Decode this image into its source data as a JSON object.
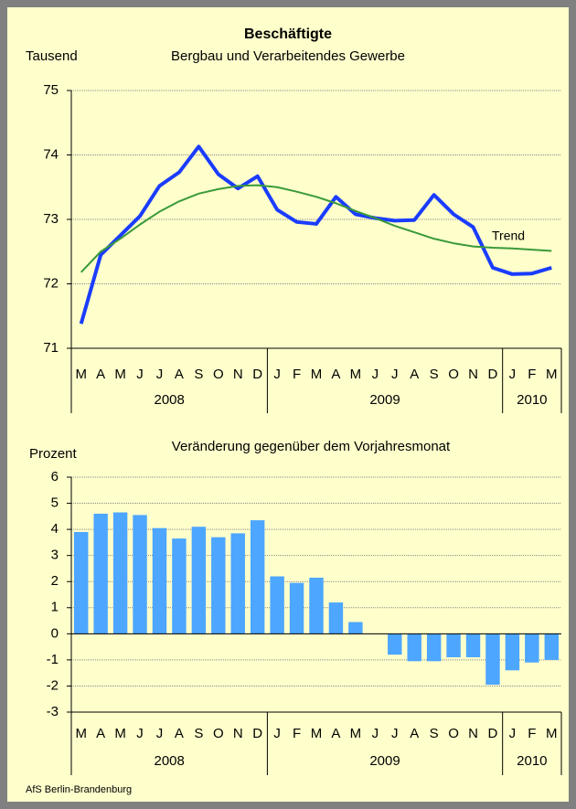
{
  "footer": "AfS Berlin-Brandenburg",
  "chart_data": [
    {
      "type": "line",
      "title": "Beschäftigte",
      "subtitle": "Bergbau und Verarbeitendes Gewerbe",
      "y_label": "Tausend",
      "categories": [
        "M",
        "A",
        "M",
        "J",
        "J",
        "A",
        "S",
        "O",
        "N",
        "D",
        "J",
        "F",
        "M",
        "A",
        "M",
        "J",
        "J",
        "A",
        "S",
        "O",
        "N",
        "D",
        "J",
        "F",
        "M"
      ],
      "x_groups": [
        {
          "label": "2008",
          "count": 10
        },
        {
          "label": "2009",
          "count": 12
        },
        {
          "label": "2010",
          "count": 3
        }
      ],
      "series": [
        {
          "name": "Beschäftigte",
          "color": "#1a3cff",
          "width": 4,
          "values": [
            71.38,
            72.45,
            72.75,
            73.05,
            73.52,
            73.73,
            74.13,
            73.7,
            73.48,
            73.67,
            73.15,
            72.96,
            72.93,
            73.35,
            73.08,
            73.02,
            72.98,
            72.99,
            73.38,
            73.08,
            72.88,
            72.25,
            72.15,
            72.16,
            72.25
          ]
        },
        {
          "name": "Trend",
          "color": "#3a9a3a",
          "width": 2,
          "values": [
            72.18,
            72.5,
            72.7,
            72.92,
            73.12,
            73.28,
            73.4,
            73.47,
            73.52,
            73.53,
            73.5,
            73.43,
            73.35,
            73.25,
            73.13,
            73.02,
            72.9,
            72.8,
            72.7,
            72.63,
            72.58,
            72.56,
            72.55,
            72.53,
            72.51
          ]
        }
      ],
      "annotations": [
        {
          "text": "Trend"
        }
      ],
      "ylim": [
        71,
        75
      ],
      "yticks": [
        71,
        72,
        73,
        74,
        75
      ],
      "grid": true
    },
    {
      "type": "bar",
      "title": "Veränderung gegenüber dem Vorjahresmonat",
      "y_label": "Prozent",
      "categories": [
        "M",
        "A",
        "M",
        "J",
        "J",
        "A",
        "S",
        "O",
        "N",
        "D",
        "J",
        "F",
        "M",
        "A",
        "M",
        "J",
        "J",
        "A",
        "S",
        "O",
        "N",
        "D",
        "J",
        "F",
        "M"
      ],
      "x_groups": [
        {
          "label": "2008",
          "count": 10
        },
        {
          "label": "2009",
          "count": 12
        },
        {
          "label": "2010",
          "count": 3
        }
      ],
      "color": "#4da6ff",
      "values": [
        3.9,
        4.6,
        4.65,
        4.55,
        4.05,
        3.65,
        4.1,
        3.7,
        3.85,
        4.35,
        2.2,
        1.95,
        2.15,
        1.2,
        0.45,
        0,
        -0.8,
        -1.05,
        -1.05,
        -0.9,
        -0.9,
        -1.95,
        -1.4,
        -1.1,
        -1.0
      ],
      "ylim": [
        -3,
        6
      ],
      "yticks": [
        -3,
        -2,
        -1,
        0,
        1,
        2,
        3,
        4,
        5,
        6
      ],
      "grid": true
    }
  ]
}
